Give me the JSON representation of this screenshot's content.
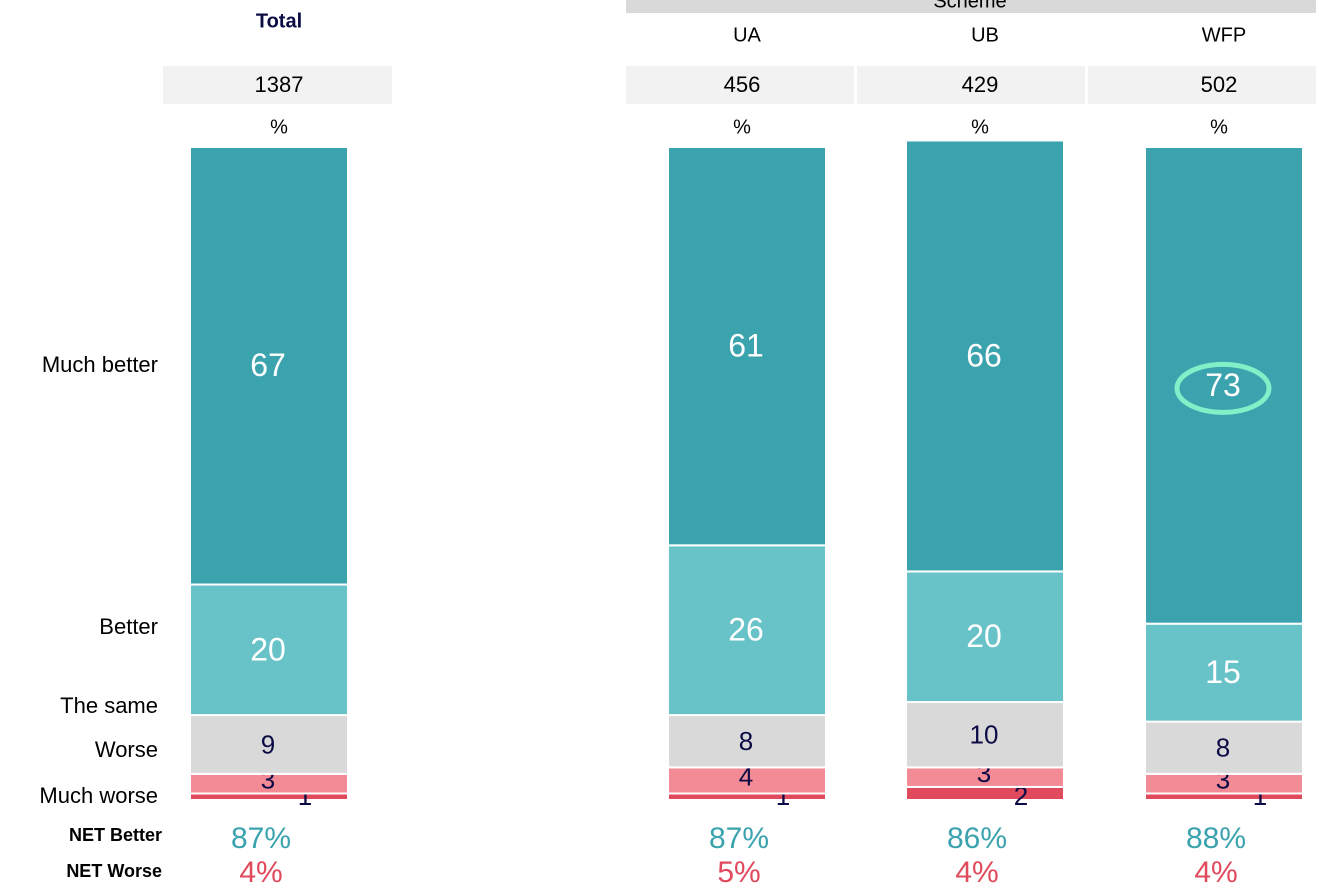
{
  "chart_data": {
    "type": "stacked-bar",
    "group_header": "Scheme",
    "categories": [
      "Total",
      "UA",
      "UB",
      "WFP"
    ],
    "bases": [
      1387,
      456,
      429,
      502
    ],
    "unit_label": "%",
    "ylim": [
      0,
      100
    ],
    "series": [
      {
        "name": "Much better",
        "color": "#3ba3ad",
        "values": [
          67,
          61,
          66,
          73
        ]
      },
      {
        "name": "Better",
        "color": "#68c3c9",
        "values": [
          20,
          26,
          20,
          15
        ]
      },
      {
        "name": "The same",
        "color": "#d9d9d9",
        "values": [
          9,
          8,
          10,
          8
        ]
      },
      {
        "name": "Worse",
        "color": "#f28b95",
        "values": [
          3,
          4,
          3,
          3
        ]
      },
      {
        "name": "Much worse",
        "color": "#e04a5c",
        "values": [
          1,
          1,
          2,
          1
        ]
      }
    ],
    "net_better": {
      "name": "NET Better",
      "color": "#3ba3ad",
      "values": [
        87,
        87,
        86,
        88
      ],
      "value_labels": [
        "87%",
        "87%",
        "86%",
        "88%"
      ]
    },
    "net_worse": {
      "name": "NET Worse",
      "color": "#e04a5c",
      "values": [
        4,
        5,
        4,
        4
      ],
      "value_labels": [
        "4%",
        "5%",
        "4%",
        "4%"
      ]
    }
  }
}
